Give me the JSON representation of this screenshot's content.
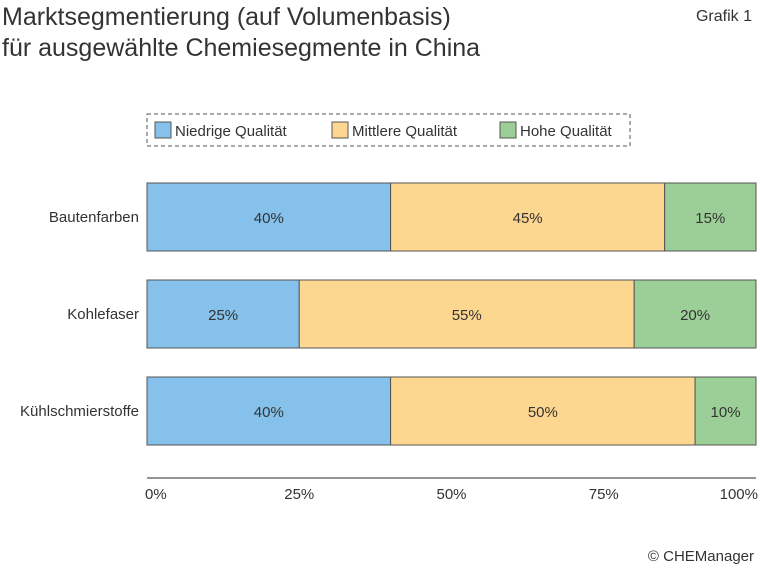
{
  "title_lines": [
    "Marktsegmentierung (auf Volumenbasis)",
    "für ausgewählte Chemiesegmente in China"
  ],
  "grafik_label": "Grafik 1",
  "copyright": "© CHEManager",
  "colors": {
    "low": "#85c1ea",
    "mid": "#fdd68f",
    "high": "#9ccf98",
    "border": "#555555",
    "text": "#333333"
  },
  "chart_data": {
    "type": "bar",
    "orientation": "horizontal",
    "stacked": true,
    "categories": [
      "Bautenfarben",
      "Kohlefaser",
      "Kühlschmierstoffe"
    ],
    "series": [
      {
        "name": "Niedrige Qualität",
        "values": [
          40,
          25,
          40
        ],
        "labels": [
          "40%",
          "25%",
          "40%"
        ]
      },
      {
        "name": "Mittlere Qualität",
        "values": [
          45,
          55,
          50
        ],
        "labels": [
          "45%",
          "55%",
          "50%"
        ]
      },
      {
        "name": "Hohe Qualität",
        "values": [
          15,
          20,
          10
        ],
        "labels": [
          "15%",
          "20%",
          "10%"
        ]
      }
    ],
    "x_ticks": [
      0,
      25,
      50,
      75,
      100
    ],
    "x_tick_labels": [
      "0%",
      "25%",
      "50%",
      "75%",
      "100%"
    ],
    "xlim": [
      0,
      100
    ],
    "grid": false,
    "legend_position": "top"
  }
}
